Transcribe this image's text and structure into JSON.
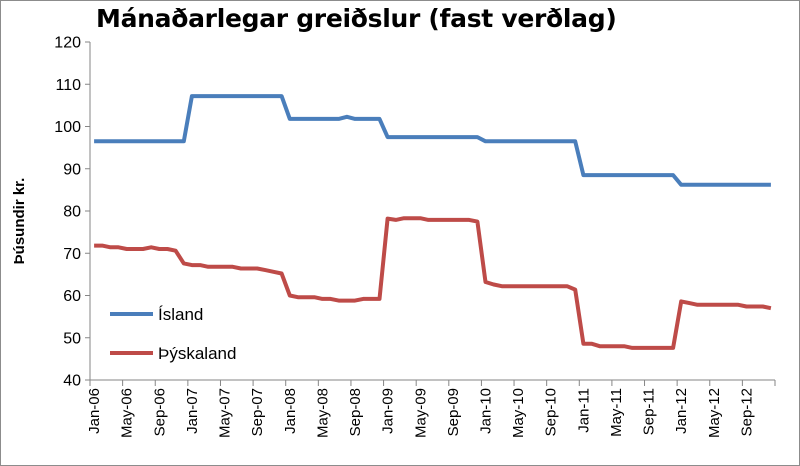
{
  "chart_data": {
    "type": "line",
    "title": "Mánaðarlegar greiðslur (fast verðlag)",
    "xlabel": "",
    "ylabel": "Þúsundir kr.",
    "ylim": [
      40,
      120
    ],
    "yticks": [
      40,
      50,
      60,
      70,
      80,
      90,
      100,
      110,
      120
    ],
    "grid": false,
    "legend_position": "left, lower-middle",
    "categories": [
      "Jan-06",
      "May-06",
      "Sep-06",
      "Jan-07",
      "May-07",
      "Sep-07",
      "Jan-08",
      "May-08",
      "Sep-08",
      "Jan-09",
      "May-09",
      "Sep-09",
      "Jan-10",
      "May-10",
      "Sep-10",
      "Jan-11",
      "May-11",
      "Sep-11",
      "Jan-12",
      "May-12",
      "Sep-12"
    ],
    "x": [
      "Jan-06",
      "Feb-06",
      "Mar-06",
      "Apr-06",
      "May-06",
      "Jun-06",
      "Jul-06",
      "Aug-06",
      "Sep-06",
      "Oct-06",
      "Nov-06",
      "Dec-06",
      "Jan-07",
      "Feb-07",
      "Mar-07",
      "Apr-07",
      "May-07",
      "Jun-07",
      "Jul-07",
      "Aug-07",
      "Sep-07",
      "Oct-07",
      "Nov-07",
      "Dec-07",
      "Jan-08",
      "Feb-08",
      "Mar-08",
      "Apr-08",
      "May-08",
      "Jun-08",
      "Jul-08",
      "Aug-08",
      "Sep-08",
      "Oct-08",
      "Nov-08",
      "Dec-08",
      "Jan-09",
      "Feb-09",
      "Mar-09",
      "Apr-09",
      "May-09",
      "Jun-09",
      "Jul-09",
      "Aug-09",
      "Sep-09",
      "Oct-09",
      "Nov-09",
      "Dec-09",
      "Jan-10",
      "Feb-10",
      "Mar-10",
      "Apr-10",
      "May-10",
      "Jun-10",
      "Jul-10",
      "Aug-10",
      "Sep-10",
      "Oct-10",
      "Nov-10",
      "Dec-10",
      "Jan-11",
      "Feb-11",
      "Mar-11",
      "Apr-11",
      "May-11",
      "Jun-11",
      "Jul-11",
      "Aug-11",
      "Sep-11",
      "Oct-11",
      "Nov-11",
      "Dec-11",
      "Jan-12",
      "Feb-12",
      "Mar-12",
      "Apr-12",
      "May-12",
      "Jun-12",
      "Jul-12",
      "Aug-12",
      "Sep-12",
      "Oct-12",
      "Nov-12",
      "Dec-12"
    ],
    "series": [
      {
        "name": "Ísland",
        "color": "#4a7ebb",
        "values": [
          96.5,
          96.5,
          96.5,
          96.5,
          96.5,
          96.5,
          96.5,
          96.5,
          96.5,
          96.5,
          96.5,
          96.5,
          107.2,
          107.2,
          107.2,
          107.2,
          107.2,
          107.2,
          107.2,
          107.2,
          107.2,
          107.2,
          107.2,
          107.2,
          101.8,
          101.8,
          101.8,
          101.8,
          101.8,
          101.8,
          101.8,
          102.3,
          101.8,
          101.8,
          101.8,
          101.8,
          97.5,
          97.5,
          97.5,
          97.5,
          97.5,
          97.5,
          97.5,
          97.5,
          97.5,
          97.5,
          97.5,
          97.5,
          96.5,
          96.5,
          96.5,
          96.5,
          96.5,
          96.5,
          96.5,
          96.5,
          96.5,
          96.5,
          96.5,
          96.5,
          88.5,
          88.5,
          88.5,
          88.5,
          88.5,
          88.5,
          88.5,
          88.5,
          88.5,
          88.5,
          88.5,
          88.5,
          86.2,
          86.2,
          86.2,
          86.2,
          86.2,
          86.2,
          86.2,
          86.2,
          86.2,
          86.2,
          86.2,
          86.2
        ]
      },
      {
        "name": "Þýskaland",
        "color": "#be4b48",
        "values": [
          71.8,
          71.8,
          71.4,
          71.4,
          71.0,
          71.0,
          71.0,
          71.4,
          71.0,
          71.0,
          70.6,
          67.6,
          67.2,
          67.2,
          66.8,
          66.8,
          66.8,
          66.8,
          66.4,
          66.4,
          66.4,
          66.0,
          65.6,
          65.2,
          60.0,
          59.6,
          59.6,
          59.6,
          59.2,
          59.2,
          58.8,
          58.8,
          58.8,
          59.2,
          59.2,
          59.2,
          78.2,
          77.9,
          78.3,
          78.3,
          78.3,
          77.9,
          77.9,
          77.9,
          77.9,
          77.9,
          77.9,
          77.5,
          63.2,
          62.6,
          62.2,
          62.2,
          62.2,
          62.2,
          62.2,
          62.2,
          62.2,
          62.2,
          62.2,
          61.4,
          48.6,
          48.6,
          48.0,
          48.0,
          48.0,
          48.0,
          47.6,
          47.6,
          47.6,
          47.6,
          47.6,
          47.6,
          58.6,
          58.2,
          57.8,
          57.8,
          57.8,
          57.8,
          57.8,
          57.8,
          57.4,
          57.4,
          57.4,
          57.0
        ]
      }
    ]
  }
}
